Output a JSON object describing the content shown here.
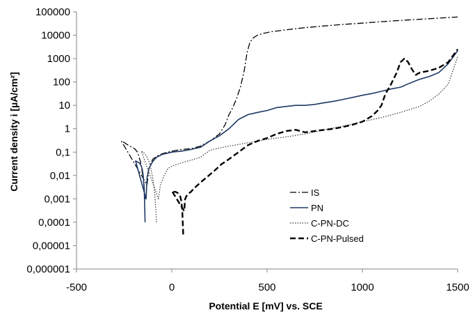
{
  "chart_data": {
    "type": "line",
    "title": "",
    "xlabel": "Potential E [mV] vs. SCE",
    "ylabel": "Current density i [µA/cm²]",
    "xlim": [
      -500,
      1500
    ],
    "ylim": [
      1e-06,
      100000
    ],
    "y_scale": "log",
    "grid": false,
    "legend_position": "right-center",
    "x_ticks": [
      "-500",
      "0",
      "500",
      "1000",
      "1500"
    ],
    "x_tick_values": [
      -500,
      0,
      500,
      1000,
      1500
    ],
    "y_ticks": [
      "0,000001",
      "0,00001",
      "0,0001",
      "0,001",
      "0,01",
      "0,1",
      "1",
      "10",
      "100",
      "1000",
      "10000",
      "100000"
    ],
    "y_tick_values": [
      1e-06,
      1e-05,
      0.0001,
      0.001,
      0.01,
      0.1,
      1,
      10,
      100,
      1000,
      10000,
      100000
    ],
    "series": [
      {
        "name": "IS",
        "color": "#000000",
        "style": "dashdot",
        "x": [
          -140,
          -150,
          -165,
          -180,
          -195,
          -210,
          -230,
          -250,
          -265,
          -130,
          -120,
          -100,
          -75,
          -50,
          -20,
          0,
          50,
          100,
          150,
          200,
          250,
          280,
          300,
          320,
          340,
          360,
          380,
          395,
          410,
          430,
          450,
          480,
          520,
          600,
          700,
          800,
          900,
          1000,
          1100,
          1200,
          1300,
          1400,
          1500
        ],
        "y": [
          0.001,
          0.008,
          0.04,
          0.1,
          0.14,
          0.16,
          0.2,
          0.26,
          0.3,
          0.004,
          0.02,
          0.05,
          0.07,
          0.085,
          0.1,
          0.11,
          0.13,
          0.14,
          0.18,
          0.3,
          0.6,
          1.5,
          4,
          8,
          20,
          60,
          300,
          1800,
          5000,
          8000,
          10000,
          12000,
          14000,
          17000,
          21000,
          25000,
          29000,
          33000,
          38000,
          43000,
          48000,
          54000,
          60000
        ]
      },
      {
        "name": "PN",
        "color": "#1f3864",
        "style": "solid",
        "x": [
          -140,
          -145,
          -150,
          -155,
          -160,
          -165,
          -170,
          -175,
          -180,
          -185,
          -190,
          -135,
          -130,
          -120,
          -100,
          -80,
          -50,
          0,
          50,
          100,
          150,
          200,
          250,
          300,
          350,
          400,
          450,
          500,
          550,
          600,
          650,
          700,
          750,
          800,
          850,
          900,
          950,
          1000,
          1050,
          1100,
          1150,
          1200,
          1250,
          1300,
          1350,
          1400,
          1450,
          1500
        ],
        "y": [
          0.0001,
          0.003,
          0.01,
          0.018,
          0.025,
          0.03,
          0.034,
          0.036,
          0.038,
          0.04,
          0.042,
          0.001,
          0.008,
          0.02,
          0.04,
          0.06,
          0.08,
          0.1,
          0.11,
          0.13,
          0.16,
          0.3,
          0.5,
          1.0,
          2.5,
          4.0,
          5.0,
          6.0,
          8.0,
          9.0,
          10,
          10,
          11,
          13,
          15,
          18,
          22,
          27,
          32,
          40,
          50,
          60,
          90,
          130,
          170,
          250,
          600,
          2200
        ]
      },
      {
        "name": "C-PN-DC",
        "color": "#333333",
        "style": "dotted",
        "x": [
          -80,
          -90,
          -100,
          -110,
          -120,
          -130,
          -140,
          -150,
          -160,
          -70,
          -60,
          -40,
          -20,
          0,
          50,
          100,
          150,
          200,
          250,
          300,
          400,
          500,
          600,
          700,
          800,
          900,
          1000,
          1100,
          1200,
          1300,
          1350,
          1400,
          1450,
          1500
        ],
        "y": [
          0.0001,
          0.002,
          0.008,
          0.02,
          0.04,
          0.06,
          0.08,
          0.1,
          0.11,
          0.001,
          0.004,
          0.01,
          0.02,
          0.025,
          0.035,
          0.045,
          0.06,
          0.12,
          0.15,
          0.18,
          0.25,
          0.35,
          0.45,
          0.6,
          0.9,
          1.3,
          2.0,
          3.0,
          5.0,
          9.0,
          15,
          30,
          80,
          1200
        ]
      },
      {
        "name": "C-PN-Pulsed",
        "color": "#000000",
        "style": "dashed",
        "x": [
          60,
          55,
          50,
          45,
          40,
          35,
          30,
          25,
          20,
          10,
          0,
          65,
          70,
          80,
          100,
          120,
          150,
          180,
          220,
          260,
          300,
          350,
          400,
          450,
          500,
          550,
          600,
          650,
          700,
          750,
          800,
          850,
          900,
          950,
          1000,
          1050,
          1080,
          1100,
          1120,
          1150,
          1180,
          1200,
          1220,
          1240,
          1260,
          1280,
          1300,
          1350,
          1400,
          1450,
          1500
        ],
        "y": [
          3e-05,
          0.0003,
          0.0008,
          0.0012,
          0.0015,
          0.0017,
          0.0018,
          0.0019,
          0.002,
          0.002,
          0.0022,
          0.0003,
          0.001,
          0.0015,
          0.002,
          0.003,
          0.005,
          0.008,
          0.015,
          0.03,
          0.05,
          0.1,
          0.2,
          0.3,
          0.4,
          0.6,
          0.8,
          0.9,
          0.7,
          0.8,
          0.9,
          1.0,
          1.2,
          1.5,
          2.0,
          3.5,
          6,
          10,
          30,
          80,
          250,
          700,
          1000,
          700,
          350,
          200,
          250,
          300,
          400,
          700,
          2500
        ]
      }
    ]
  }
}
